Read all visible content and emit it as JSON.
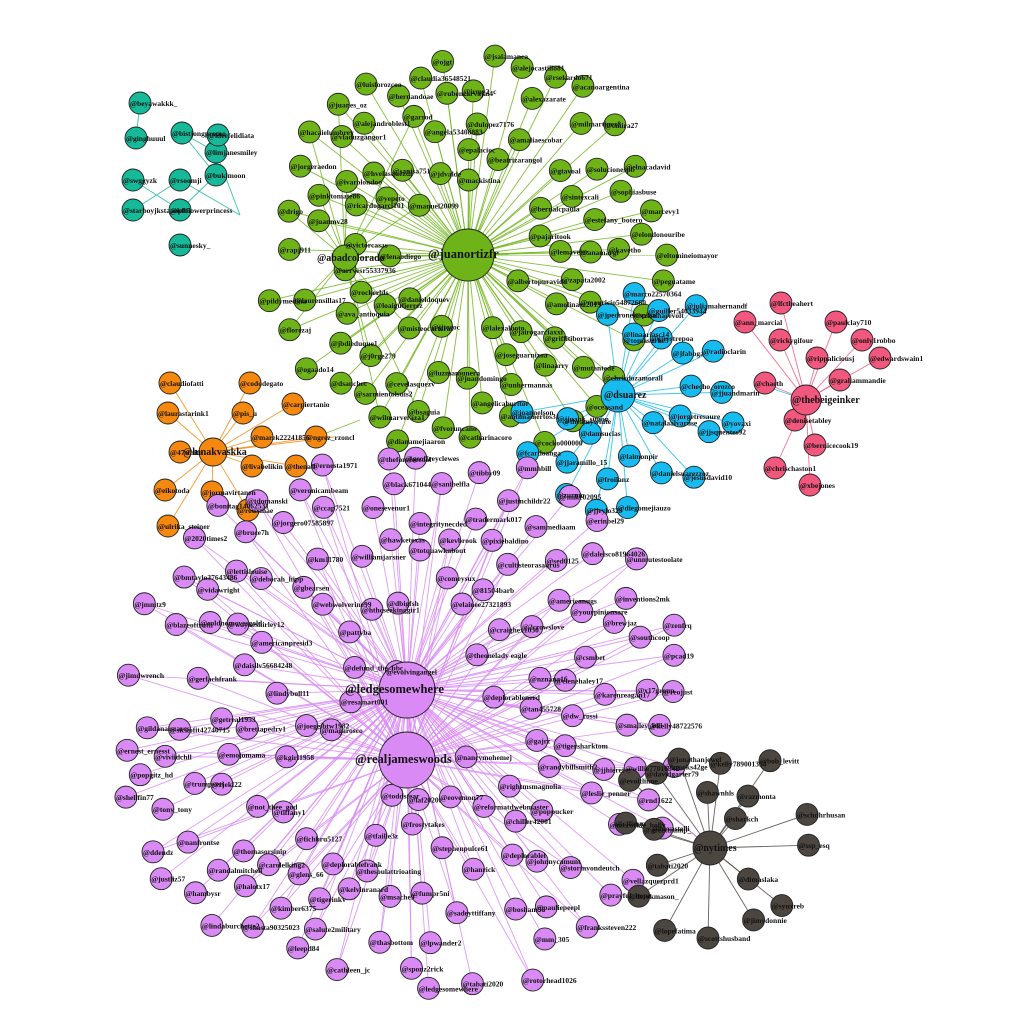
{
  "colors": {
    "green": "#6eb419",
    "teal": "#16b998",
    "orange": "#f5880f",
    "blue": "#16bcf0",
    "pink": "#f2587e",
    "purple": "#d98af5",
    "dark": "#4b4640"
  },
  "clusters": {
    "green": {
      "hub": "@juanortizfr",
      "subhub": "@abadcolorado",
      "members": [
        "@eltomineiomayor",
        "@luzmamunera",
        "@rubencarvajal4",
        "@wilmarveraza1",
        "@irmy2_c",
        "@hernandoae",
        "@amaliaescobar",
        "@dsanchec",
        "@jdvalde",
        "@elnacadavid",
        "@mutantede",
        "@alejandroblest1",
        "@j0rge279",
        "@linaarry",
        "@ava_antioquia",
        "@sophiasbuse",
        "@ojgt",
        "@mauricio54872660",
        "@pinktomate86",
        "@bernalcpaula",
        "@luisforozcoa",
        "@victorcasas",
        "@hvelasquezdr",
        "@solucionespb",
        "@milmartinez8",
        "@rapj911",
        "@angela53408883",
        "@ivarolondoo",
        "@cevelasquezv",
        "@alejocastillo81",
        "@chrisdozamorall",
        "@jairogarciaxxi",
        "@anamargr",
        "@laurensillas17",
        "@oceasand",
        "@cmira27",
        "@dulopez7176",
        "@albertopuravida",
        "@gtavoal",
        "@juanes_oz",
        "@peguatame",
        "@cocko000000",
        "@antimamertos31",
        "@cristinarevolt",
        "@lenaodiego",
        "@catharinacoro",
        "@angelicaburitor",
        "@sarmientolsuis2",
        "@unhermannas",
        "@sintexcali",
        "@sanisa751",
        "@jsalamanca",
        "@rockerlds",
        "@mackistina",
        "@bsaguia",
        "@tomasurbe5",
        "@rsekardo671",
        "@pajaritook",
        "@zapata2002",
        "@amolinaez2013",
        "@hacaielumbrey",
        "@joseguarnizoa",
        "@kavetho",
        "@fvoruncano",
        "@lemavelez",
        "@loaigutierrez",
        "@florezaj",
        "@marcevy1",
        "@acanoargentina",
        "@misteocarteras",
        "@claudia36548521",
        "@beatrizarangol",
        "@juanmv28",
        "@dianamejiaaron",
        "@danieldoquev",
        "@manuel20099",
        "@alexazarate",
        "@epalacioc",
        "@yepeto",
        "@juandomingo",
        "@vladuzgangor1",
        "@garrod",
        "@estefany_botero",
        "@lalexalboto",
        "@arrvesr55337936",
        "@ogaado14",
        "@jorgeraedon",
        "@drigo",
        "@jbdieduque1",
        "@griffitiborras",
        "@jjtoroc",
        "@ricardogarci101",
        "@elondonouribe",
        "@theamywhite",
        "@pildymedina"
      ]
    },
    "teal": {
      "members": [
        "@beyawakkk_",
        "@bistjongpromo",
        "@ginghuuul",
        "@limjanesmiley",
        "@ideefelidiata",
        "@swggyzk",
        "@rsoomji",
        "@bukimoon",
        "@starboyjkstapoplus",
        "@ktlflowerprincess",
        "@sunnesky_"
      ]
    },
    "orange": {
      "hub": "@lunakvaskka",
      "members": [
        "@claudiofatti",
        "@cododegato",
        "@carpiertanio",
        "@laurastarink1",
        "@pis_u",
        "@marek22241856",
        "@ngrez_rzoncl",
        "@47white",
        "@livabelikin",
        "@thenafl",
        "@eikotoda",
        "@jormavirtanen",
        "@rouxmae",
        "@ulrika_steiner"
      ]
    },
    "blue": {
      "hub": "@dsuarez",
      "members": [
        "@jjsquentes92",
        "@laimonpir",
        "@jjrestrepoa",
        "@jjaramillo_15",
        "@joannelson",
        "@guiller54033944",
        "@natalaalvaruse",
        "@jesusdavid10",
        "@marco22570364",
        "@jorgetresaure",
        "@damsucias",
        "@fcardoanga",
        "@diegomejiauzo",
        "@radioclarin",
        "@jjuandmarin",
        "@jfaboga",
        "@danielsuarezzoz",
        "@jjeylo329",
        "@jpedronelospina",
        "@zurmo",
        "@juliamahernandf",
        "@linaariasc14",
        "@jjuank_simon",
        "@froilanz",
        "@checho_orozco",
        "@yovaxi"
      ]
    },
    "pink": {
      "hub": "@thebeigeinker",
      "members": [
        "@lfctheahert",
        "@ann_marcial",
        "@paulclay710",
        "@rickygifour",
        "@only1robbo",
        "@rippaliciousj",
        "@edwardswain1",
        "@grahammandie",
        "@chaeth",
        "@denisetabley",
        "@bernicecook19",
        "@chrischaston1",
        "@xbejones"
      ]
    },
    "purple": {
      "hub": "@ledgesomewhere",
      "hub2": "@realjameswoods",
      "members": [
        "@mmhbill",
        "@theonelady eagle",
        "@thasbottom",
        "@lindyboll11",
        "@americanpresid3",
        "@randalmitchell",
        "@cultisteorasaurus",
        "@chiller42001",
        "@frostytakes",
        "@inventions2mk",
        "@tdomanski",
        "@mccorkle_holly",
        "@craighex1030",
        "@rjekl22",
        "@sanibelfla",
        "@deplorablenerd",
        "@frankssteven222",
        "@sammediaam",
        "@stormvondeutch",
        "@tony_tony",
        "@gbearsen",
        "@rightmsmagnolia",
        "@ddendz",
        "@hawketexas",
        "@veronicambeam",
        "@onesevenur1",
        "@bruce7h",
        "@daleisco81964026",
        "@sadeyttiffany",
        "@dbigfsh",
        "@kelly48722576",
        "@tiffany1",
        "@tigersharktom",
        "@shellfin77",
        "@vidawright",
        "@jjhieret",
        "@nznana16",
        "@justliz57",
        "@pixiebaldino",
        "@lindaburchette2",
        "@km11780",
        "@smalley_bill",
        "@shasta90325023",
        "@magarosco",
        "@pcad19",
        "@leepd84",
        "@southcoop",
        "@thefonzieccool",
        "@ernesta1971",
        "@mm_305",
        "@salute2military",
        "@pattyba",
        "@kgirl1958",
        "@randybillsmith2",
        "@blazeoftruth",
        "@81504barb",
        "@leslie_penner",
        "@navastelli",
        "@zenfrq",
        "@dw_rossi",
        "@karenreagan17",
        "@lpwander2",
        "@halotx17",
        "@tradermark017",
        "@x17group",
        "@trumpyeti",
        "@glens_66",
        "@ledgesomewhere",
        "@nanfrontse",
        "@getreal1953",
        "@gildanaiscarcs",
        "@prayful_hope",
        "@gerlachfrank",
        "@resamart001",
        "@joegeibtw1982",
        "@totquawkabout",
        "@2020times2",
        "@not_thee_god",
        "@brettapedry1",
        "@black671044",
        "@jmmtz9",
        "@jorgero07585897",
        "@comeysux",
        "@wayneshirley12",
        "@2crowslove",
        "@geoffreyclewes",
        "@gajrz",
        "@sed0125",
        "@defund_the_bbc",
        "@daisilv56684248",
        "@tigerinkv",
        "@coldnomovesgold",
        "@yourpinionsare",
        "@hthcseekinggir1",
        "@americanugs",
        "@tibby09",
        "@ccap7521",
        "@williamjarsner",
        "@unmutestoolate",
        "@tabati2020",
        "@hanrick",
        "@johnnycamunt",
        "@brooks42ge",
        "@thomasorsinip",
        "@rnd1622",
        "@integritynecded",
        "@willie77016342",
        "@fumpr5ni",
        "@brewjaz",
        "@evolvingangel",
        "@ernest_ernesst",
        "@vellazquezprd1",
        "@emojomama",
        "@tan455728",
        "@lettislouise",
        "@nancymohemej",
        "@reojust",
        "@erinbel29",
        "@bmtaylo37643486",
        "@stephenpulce61",
        "@viviidchll",
        "@laf2020t",
        "@eovemon77",
        "@msache9",
        "@sponz2rick",
        "@deborah_hipp",
        "@jimdwrench",
        "@hambysr",
        "@kelvinranard",
        "@deplorablefrank",
        "@kimber6375",
        "@tfaille3z",
        "@thesoulattrioating",
        "@bosham56",
        "@deplorablel",
        "@toddstear",
        "@cathleen_jc",
        "@sickofit42740715",
        "@rotorhead1026",
        "@bonitag14062531",
        "@csmbet",
        "@poppucker",
        "@kevbrook",
        "@fichbru5127",
        "@carolelking2",
        "@popgitz_hd",
        "@webwolverine99",
        "@mike02095",
        "@justinchildr22",
        "@pauliepeepl",
        "@reformatdwebmaster",
        "@elainee27321893",
        "@elenehaley17"
      ]
    },
    "dark": {
      "hub": "@nytimes",
      "members": [
        "@tabati2020",
        "@evoltlinne",
        "@dimaslaka",
        "@sharkch",
        "@cjfimm",
        "@syuxreb",
        "@jonathanjewel",
        "@razmonta",
        "@ssp_esq",
        "@scottshusband",
        "@derekmason_",
        "@kelly789001354",
        "@schdhrhusan",
        "@bob_levitt",
        "@davidgarter79",
        "@jimydonnie",
        "@greettrump_",
        "@lopefatima",
        "@shawnhls"
      ]
    }
  }
}
